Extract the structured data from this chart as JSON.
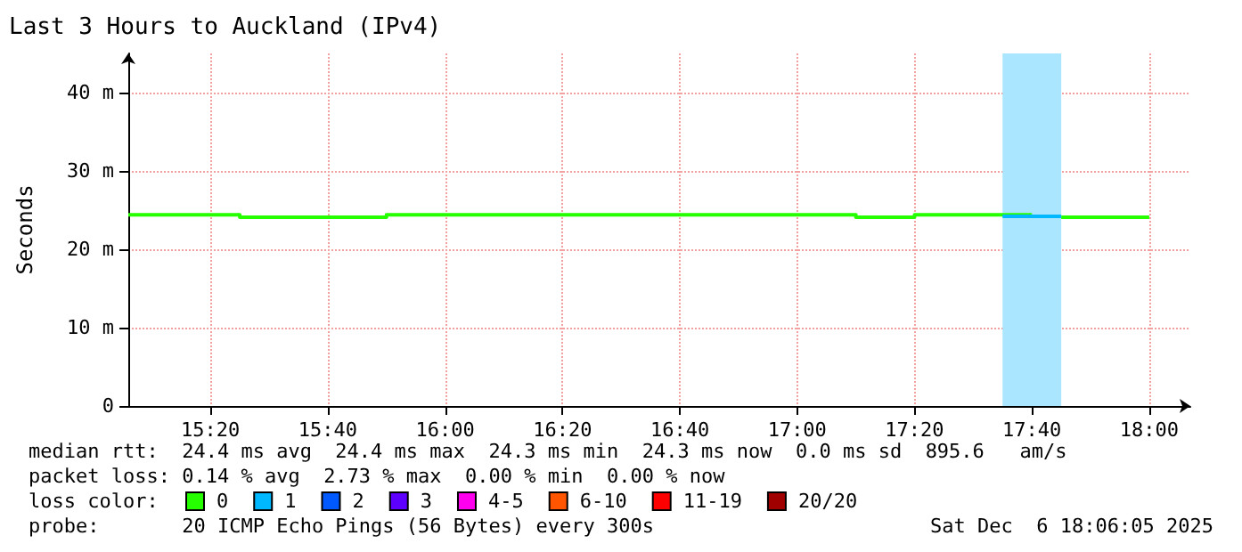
{
  "chart_data": {
    "type": "step",
    "title": "Last 3 Hours to Auckland (IPv4)",
    "ylabel": "Seconds",
    "legend_title": "loss color:",
    "series": [
      {
        "name": "0",
        "color": "#26ff00",
        "x": [
          "2025-12-06T15:06",
          "2025-12-06T15:25",
          "2025-12-06T15:50",
          "2025-12-06T17:10",
          "2025-12-06T17:20",
          "2025-12-06T17:35",
          "2025-12-06T17:40",
          "2025-12-06T17:45",
          "2025-12-06T18:00"
        ],
        "values": [
          24.4,
          24.1,
          24.4,
          24.1,
          24.4,
          24.4,
          null,
          24.1,
          24.1
        ]
      },
      {
        "name": "1",
        "color": "#00b8ff",
        "x": [
          "2025-12-06T17:35",
          "2025-12-06T17:45"
        ],
        "values": [
          24.2,
          24.2
        ]
      },
      {
        "name": "2",
        "color": "#0059ff"
      },
      {
        "name": "3",
        "color": "#5e00ff"
      },
      {
        "name": "4-5",
        "color": "#ff00ee"
      },
      {
        "name": "6-10",
        "color": "#ff5500"
      },
      {
        "name": "11-19",
        "color": "#ff0000"
      },
      {
        "name": "20/20",
        "color": "#a10000"
      }
    ],
    "bands": [
      {
        "axis": "x",
        "from": "2025-12-06T17:35",
        "to": "2025-12-06T17:45",
        "color": "#aae6ff"
      }
    ],
    "xlim": [
      "2025-12-06T15:06",
      "2025-12-06T18:07"
    ],
    "xticks": [
      {
        "value": "2025-12-06T15:20",
        "label": "15:20"
      },
      {
        "value": "2025-12-06T15:40",
        "label": "15:40"
      },
      {
        "value": "2025-12-06T16:00",
        "label": "16:00"
      },
      {
        "value": "2025-12-06T16:20",
        "label": "16:20"
      },
      {
        "value": "2025-12-06T16:40",
        "label": "16:40"
      },
      {
        "value": "2025-12-06T17:00",
        "label": "17:00"
      },
      {
        "value": "2025-12-06T17:20",
        "label": "17:20"
      },
      {
        "value": "2025-12-06T17:40",
        "label": "17:40"
      },
      {
        "value": "2025-12-06T18:00",
        "label": "18:00"
      }
    ],
    "ylim": [
      0,
      45
    ],
    "yticks": [
      0,
      {
        "value": 10,
        "label": "10 m"
      },
      {
        "value": 20,
        "label": "20 m"
      },
      {
        "value": 30,
        "label": "30 m"
      },
      {
        "value": 40,
        "label": "40 m"
      }
    ],
    "grid": true,
    "legend": "bottom left",
    "marker": "none",
    "line_style": "solid",
    "annotations": [
      "median rtt:  24.4 ms avg  24.4 ms max  24.3 ms min  24.3 ms now  0.0 ms sd  895.6   am/s",
      "packet loss: 0.14 % avg  2.73 % max  0.00 % min  0.00 % now",
      "probe:       20 ICMP Echo Pings (56 Bytes) every 300s",
      "Sat Dec  6 18:06:05 2025"
    ]
  }
}
